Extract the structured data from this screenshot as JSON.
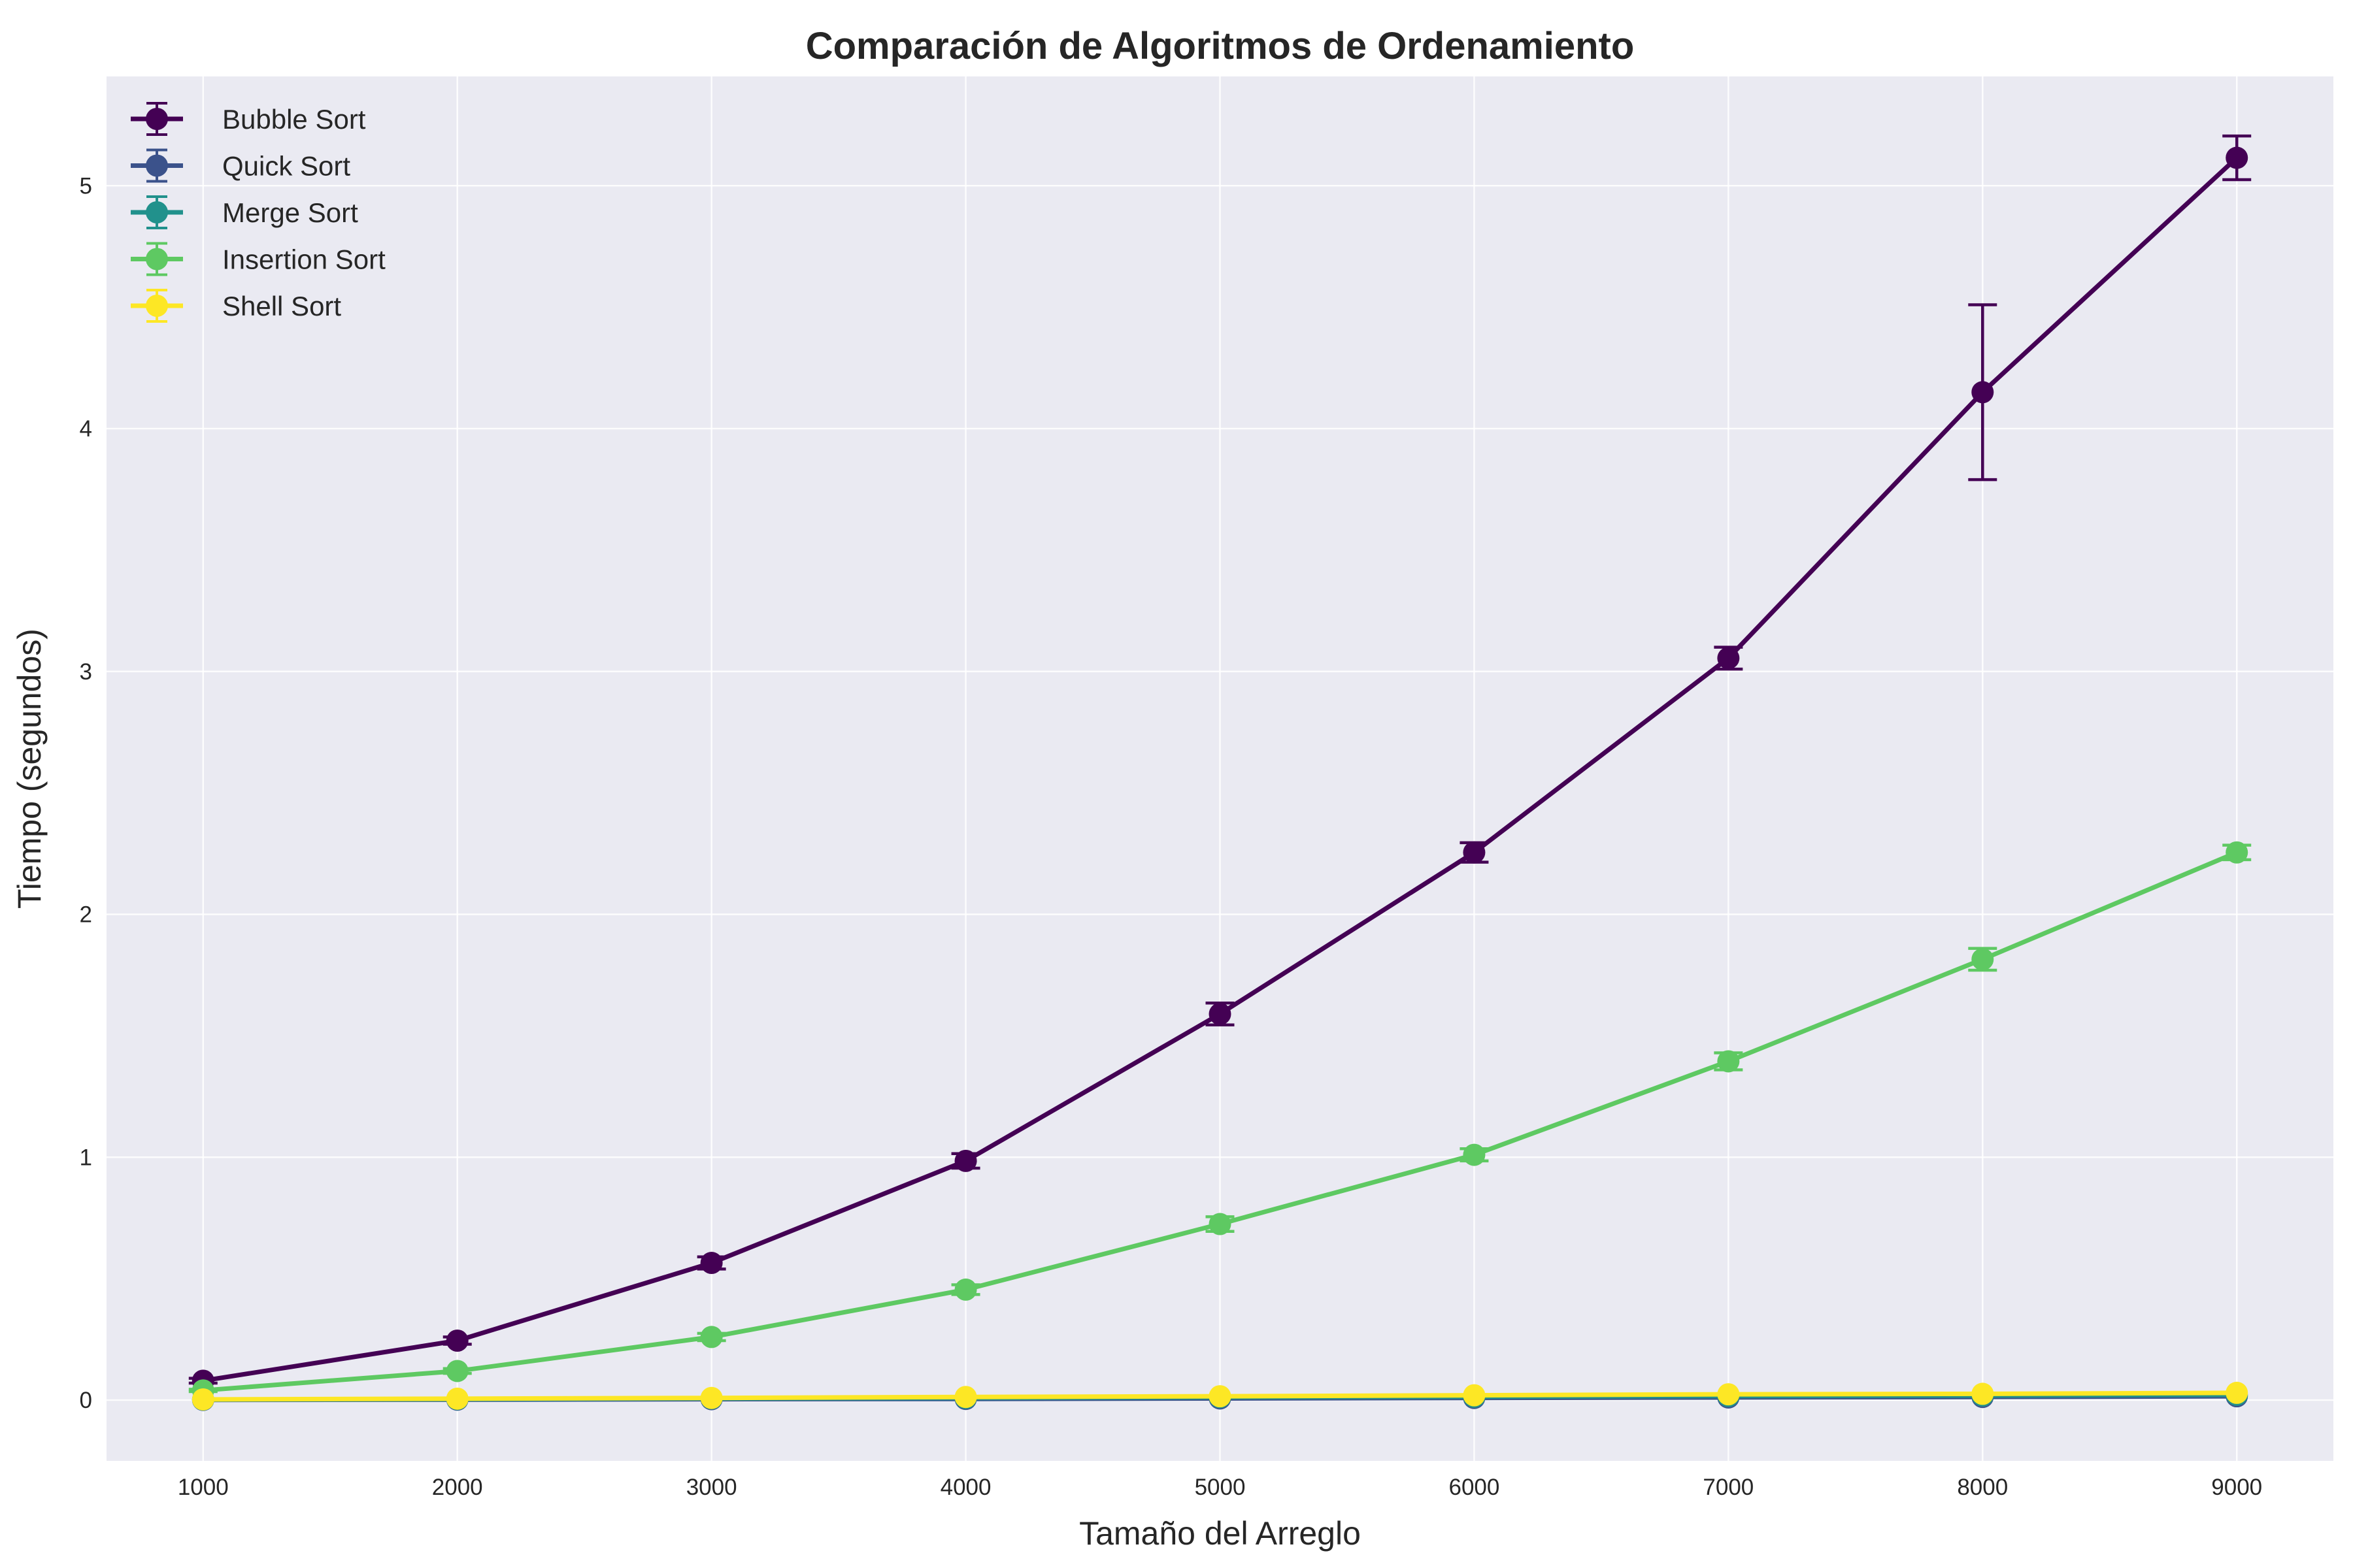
{
  "chart_data": {
    "type": "line",
    "title": "Comparación de Algoritmos de Ordenamiento",
    "xlabel": "Tamaño del Arreglo",
    "ylabel": "Tiempo (segundos)",
    "x": [
      1000,
      2000,
      3000,
      4000,
      5000,
      6000,
      7000,
      8000,
      9000
    ],
    "xticks": [
      1000,
      2000,
      3000,
      4000,
      5000,
      6000,
      7000,
      8000,
      9000
    ],
    "yticks": [
      0,
      1,
      2,
      3,
      4,
      5
    ],
    "xlim": [
      620,
      9380
    ],
    "ylim": [
      -0.25,
      5.45
    ],
    "grid": true,
    "legend_position": "top-left",
    "error_bars": true,
    "series": [
      {
        "name": "Bubble Sort",
        "color": "#440154",
        "values": [
          0.08,
          0.245,
          0.565,
          0.985,
          1.59,
          2.255,
          3.055,
          4.15,
          5.115
        ],
        "errors": [
          0.01,
          0.015,
          0.025,
          0.03,
          0.045,
          0.04,
          0.045,
          0.36,
          0.09
        ]
      },
      {
        "name": "Quick Sort",
        "color": "#3b528b",
        "values": [
          0.001,
          0.002,
          0.004,
          0.005,
          0.007,
          0.009,
          0.011,
          0.013,
          0.016
        ],
        "errors": [
          0.0005,
          0.0005,
          0.001,
          0.001,
          0.001,
          0.001,
          0.0015,
          0.0015,
          0.002
        ]
      },
      {
        "name": "Merge Sort",
        "color": "#21918c",
        "values": [
          0.002,
          0.004,
          0.007,
          0.009,
          0.012,
          0.014,
          0.017,
          0.019,
          0.022
        ],
        "errors": [
          0.0005,
          0.0005,
          0.001,
          0.001,
          0.001,
          0.001,
          0.0015,
          0.0015,
          0.002
        ]
      },
      {
        "name": "Insertion Sort",
        "color": "#5ec962",
        "values": [
          0.04,
          0.12,
          0.26,
          0.455,
          0.725,
          1.01,
          1.395,
          1.815,
          2.255
        ],
        "errors": [
          0.005,
          0.01,
          0.015,
          0.02,
          0.03,
          0.025,
          0.035,
          0.045,
          0.03
        ]
      },
      {
        "name": "Shell Sort",
        "color": "#fde725",
        "values": [
          0.003,
          0.006,
          0.009,
          0.013,
          0.016,
          0.02,
          0.024,
          0.026,
          0.03
        ],
        "errors": [
          0.001,
          0.001,
          0.001,
          0.001,
          0.0015,
          0.0015,
          0.002,
          0.002,
          0.002
        ]
      }
    ]
  }
}
